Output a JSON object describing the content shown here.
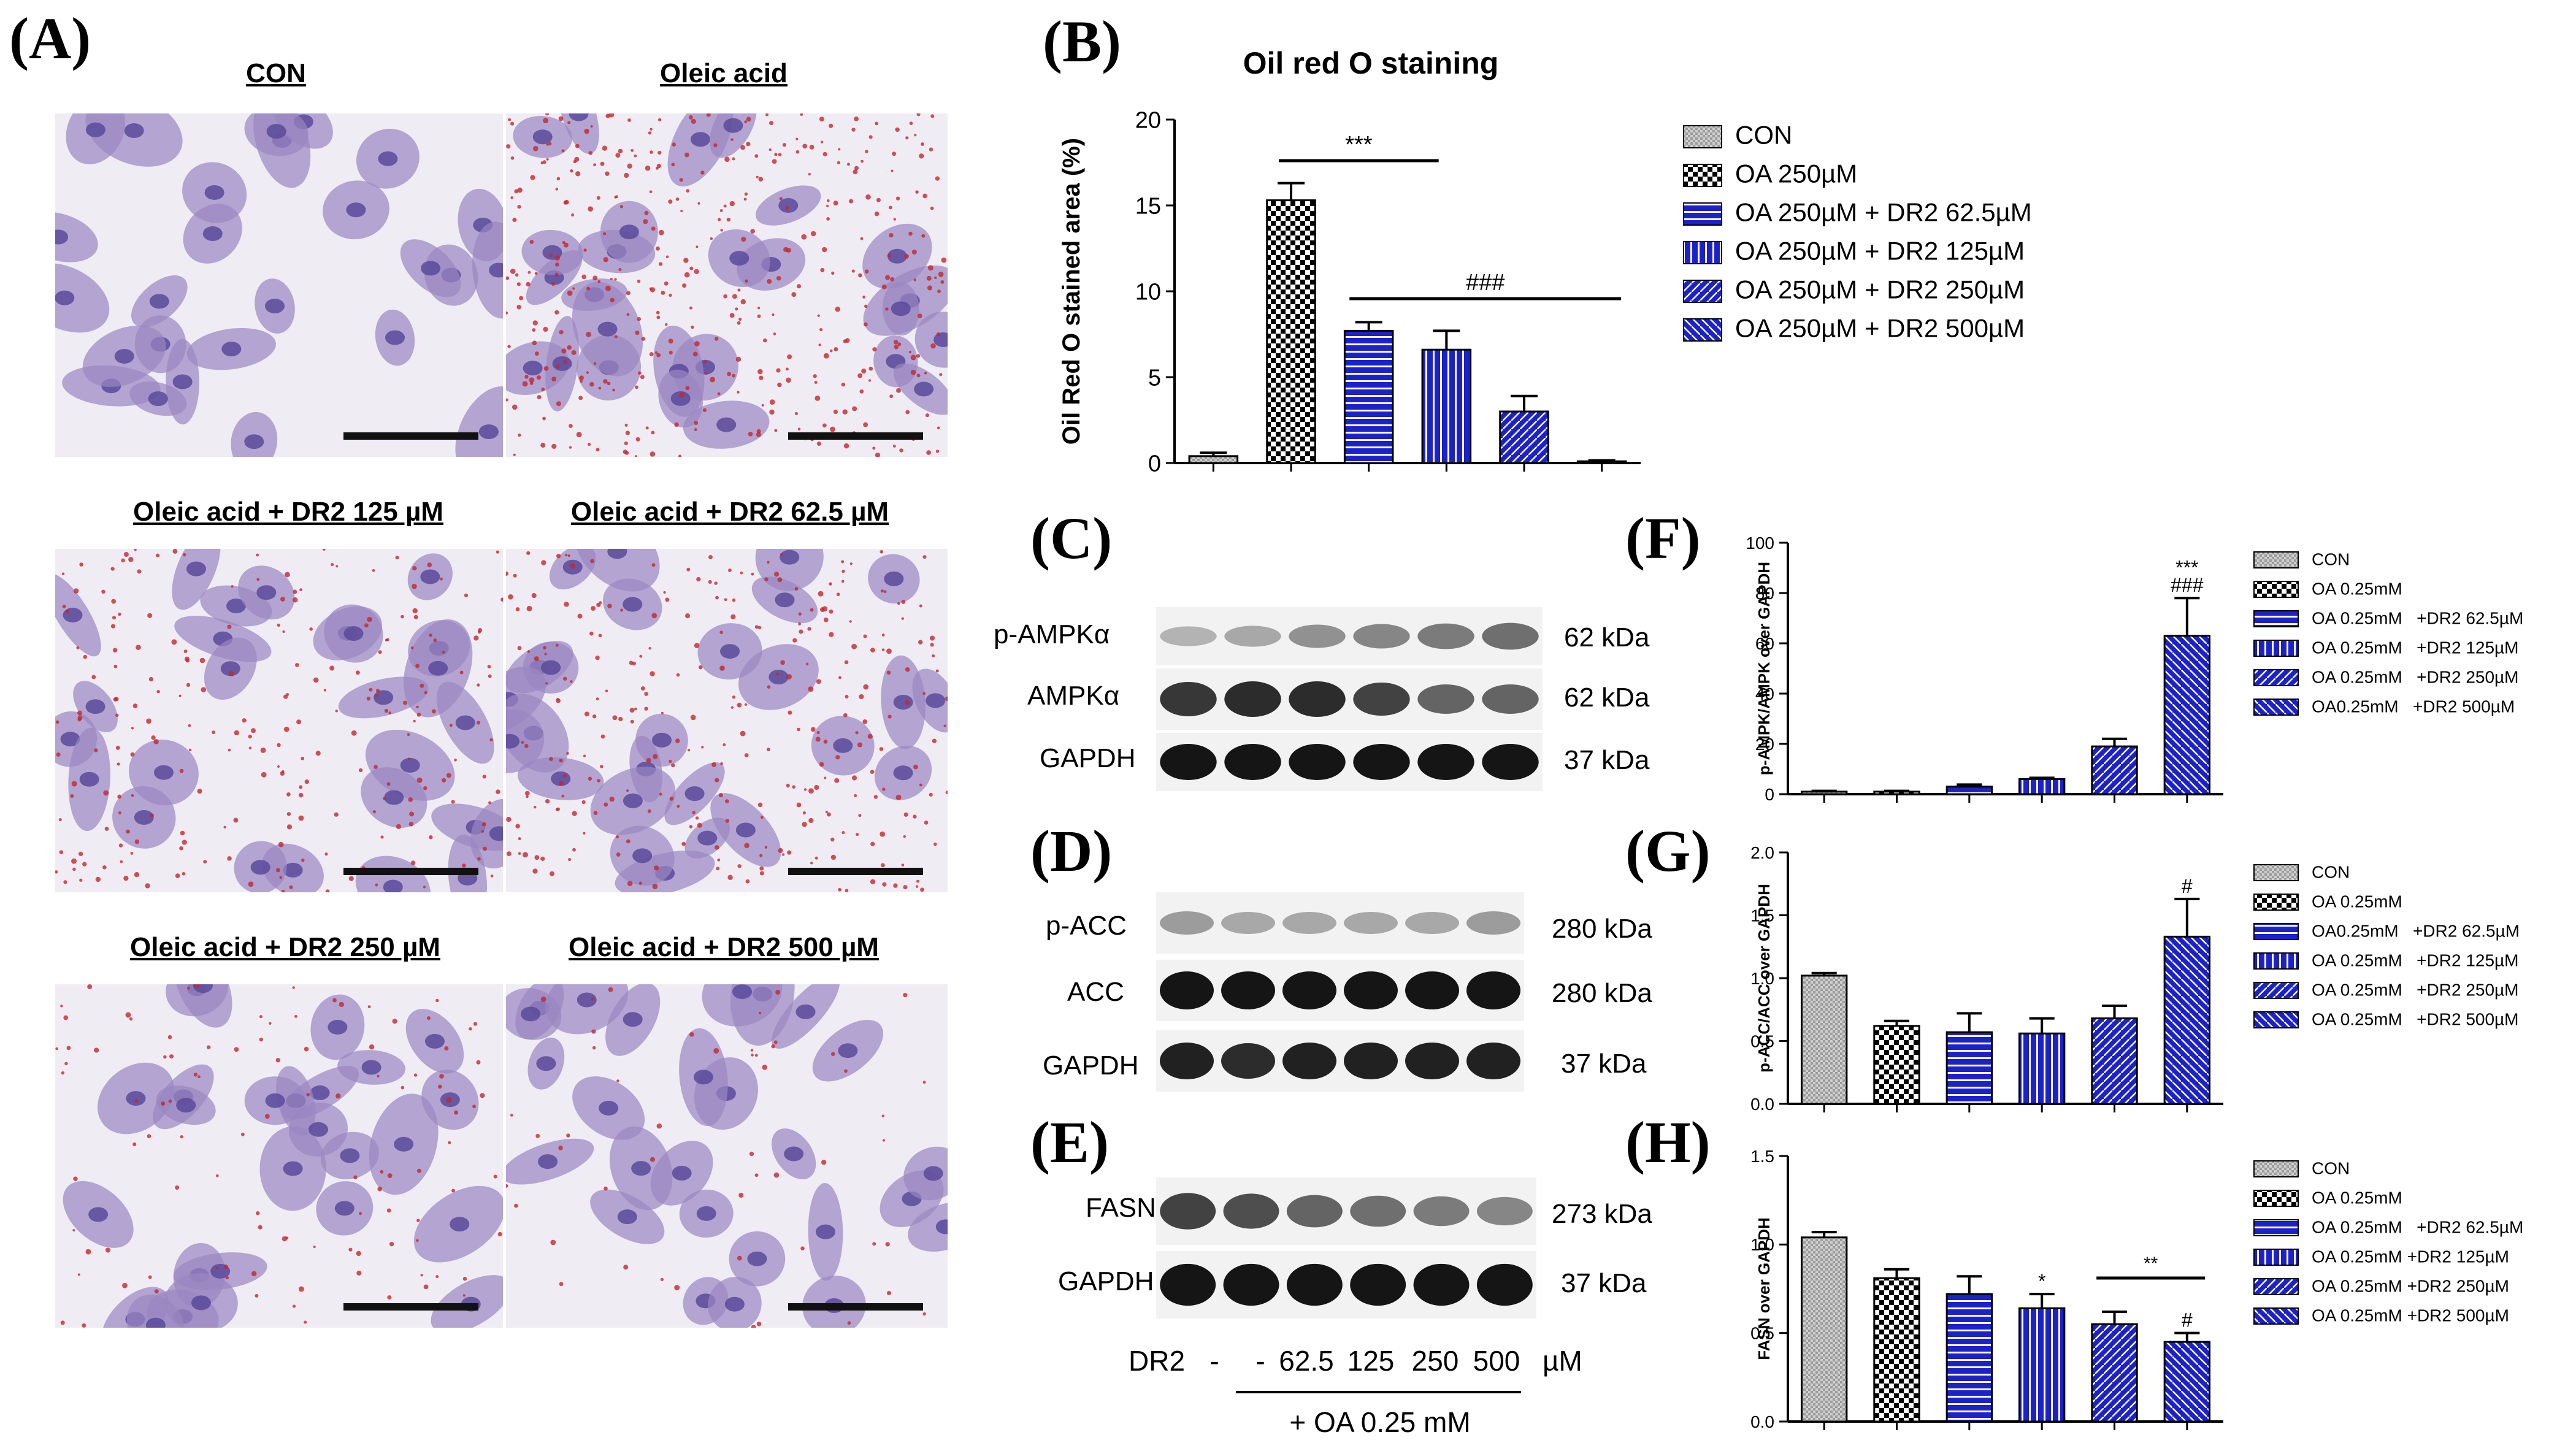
{
  "panels": {
    "A": "(A)",
    "B": "(B)",
    "C": "(C)",
    "D": "(D)",
    "E": "(E)",
    "F": "(F)",
    "G": "(G)",
    "H": "(H)"
  },
  "micrographs": [
    {
      "title": "CON",
      "lipid": 0
    },
    {
      "title": "Oleic acid",
      "lipid": 1.0
    },
    {
      "title": "Oleic acid + DR2 125 µM",
      "lipid": 0.55
    },
    {
      "title": "Oleic acid + DR2 62.5 µM",
      "lipid": 0.7
    },
    {
      "title": "Oleic acid + DR2 250 µM",
      "lipid": 0.25
    },
    {
      "title": "Oleic acid + DR2 500 µM",
      "lipid": 0.12
    }
  ],
  "colors": {
    "bar_blue": "#1c22c8",
    "cell_purple": "#9a86c2",
    "nucleus": "#5a4a9a",
    "lipid": "#c0282f"
  },
  "blots": {
    "C": [
      {
        "label": "p-AMPKα",
        "kda": "62 kDa",
        "intensity": [
          0.25,
          0.3,
          0.4,
          0.45,
          0.5,
          0.55
        ]
      },
      {
        "label": "AMPKα",
        "kda": "62 kDa",
        "intensity": [
          0.8,
          0.85,
          0.85,
          0.75,
          0.6,
          0.6
        ]
      },
      {
        "label": "GAPDH",
        "kda": "37 kDa",
        "intensity": [
          0.95,
          0.95,
          0.95,
          0.95,
          0.95,
          0.95
        ]
      }
    ],
    "D": [
      {
        "label": "p-ACC",
        "kda": "280 kDa",
        "intensity": [
          0.35,
          0.3,
          0.3,
          0.3,
          0.3,
          0.35
        ]
      },
      {
        "label": "ACC",
        "kda": "280 kDa",
        "intensity": [
          0.95,
          0.95,
          0.95,
          0.95,
          0.95,
          0.95
        ]
      },
      {
        "label": "GAPDH",
        "kda": "37 kDa",
        "intensity": [
          0.9,
          0.85,
          0.9,
          0.9,
          0.9,
          0.9
        ]
      }
    ],
    "E": [
      {
        "label": "FASN",
        "kda": "273 kDa",
        "intensity": [
          0.75,
          0.7,
          0.6,
          0.55,
          0.5,
          0.45
        ]
      },
      {
        "label": "GAPDH",
        "kda": "37 kDa",
        "intensity": [
          0.95,
          0.95,
          0.95,
          0.95,
          0.95,
          0.95
        ]
      }
    ]
  },
  "dr2_row": {
    "label": "DR2",
    "values": [
      "-",
      "-",
      "62.5",
      "125",
      "250",
      "500"
    ],
    "unit": "µM",
    "oa_label": "+ OA 0.25 mM"
  },
  "chart_data": [
    {
      "id": "B",
      "type": "bar",
      "title": "Oil red O staining",
      "ylabel": "Oil Red O stained area (%)",
      "ylim": [
        0,
        20
      ],
      "yticks": [
        "0",
        "5",
        "10",
        "15",
        "20"
      ],
      "values": [
        0.4,
        15.3,
        7.7,
        6.6,
        3.0,
        0.1
      ],
      "errors": [
        0.2,
        1.0,
        0.5,
        1.1,
        0.9,
        0.05
      ],
      "legend": [
        "CON",
        "OA 250µM",
        "OA 250µM + DR2 62.5µM",
        "OA 250µM + DR2 125µM",
        "OA 250µM + DR2 250µM",
        "OA 250µM + DR2 500µM"
      ],
      "annotations": [
        {
          "text": "***",
          "from": 1,
          "to": 3
        },
        {
          "text": "###",
          "from": 2,
          "to": 5
        }
      ]
    },
    {
      "id": "F",
      "type": "bar",
      "ylabel": "p-AMPK/AMPK over GAPDH",
      "ylim": [
        0,
        100
      ],
      "yticks": [
        "0",
        "20",
        "40",
        "60",
        "80",
        "100"
      ],
      "values": [
        1,
        1,
        3,
        6,
        19,
        63
      ],
      "errors": [
        0.3,
        0.3,
        0.8,
        0.5,
        3,
        15
      ],
      "legend": [
        "CON",
        "OA 0.25mM",
        "OA 0.25mM   +DR2 62.5µM",
        "OA 0.25mM   +DR2 125µM",
        "OA 0.25mM   +DR2 250µM",
        "OA0.25mM   +DR2 500µM"
      ],
      "marks": [
        {
          "bar": 5,
          "text": "***"
        },
        {
          "bar": 5,
          "text": "###"
        }
      ]
    },
    {
      "id": "G",
      "type": "bar",
      "ylabel": "p-ACC/ACC over GAPDH",
      "ylim": [
        0,
        2.0
      ],
      "yticks": [
        "0.0",
        "0.5",
        "1.0",
        "1.5",
        "2.0"
      ],
      "values": [
        1.02,
        0.62,
        0.57,
        0.56,
        0.68,
        1.33
      ],
      "errors": [
        0.02,
        0.04,
        0.15,
        0.12,
        0.1,
        0.3
      ],
      "legend": [
        "CON",
        "OA 0.25mM",
        "OA0.25mM   +DR2 62.5µM",
        "OA 0.25mM   +DR2 125µM",
        "OA 0.25mM   +DR2 250µM",
        "OA 0.25mM   +DR2 500µM"
      ],
      "marks": [
        {
          "bar": 5,
          "text": "#"
        }
      ]
    },
    {
      "id": "H",
      "type": "bar",
      "ylabel": "FASN over GAPDH",
      "ylim": [
        0,
        1.5
      ],
      "yticks": [
        "0.0",
        "0.5",
        "1.0",
        "1.5"
      ],
      "values": [
        1.04,
        0.81,
        0.72,
        0.64,
        0.55,
        0.45
      ],
      "errors": [
        0.03,
        0.05,
        0.1,
        0.08,
        0.07,
        0.05
      ],
      "legend": [
        "CON",
        "OA 0.25mM",
        "OA 0.25mM   +DR2 62.5µM",
        "OA 0.25mM +DR2 125µM",
        "OA 0.25mM +DR2 250µM",
        "OA 0.25mM +DR2 500µM"
      ],
      "marks": [
        {
          "bar": 3,
          "text": "*"
        },
        {
          "bar": 5,
          "text": "#"
        }
      ],
      "annotations": [
        {
          "text": "**",
          "from": 4,
          "to": 5
        }
      ]
    }
  ]
}
